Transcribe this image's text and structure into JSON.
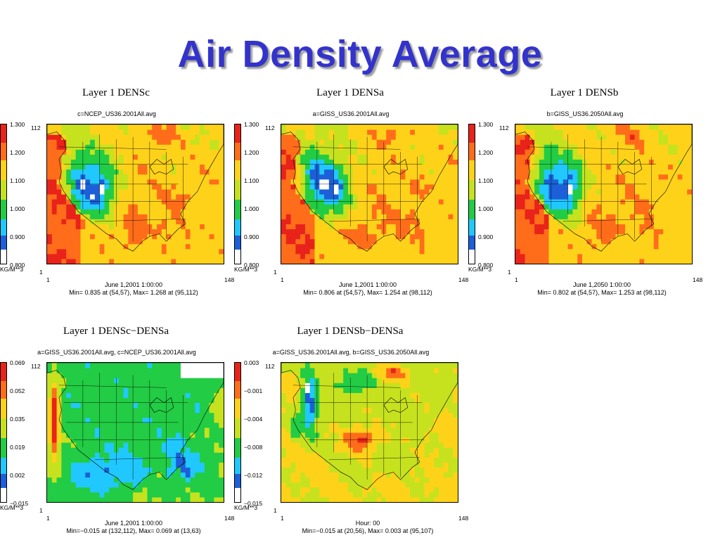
{
  "slide": {
    "title": "Air Density Average"
  },
  "panels": [
    {
      "title": "Layer 1  DENSc",
      "file": "c=NCEP_US36.2001All.avg",
      "colorbar": {
        "labels": [
          "1.300",
          "1.200",
          "1.100",
          "1.000",
          "0.900",
          "0.800"
        ],
        "unit": "KG/M**3"
      },
      "axes": {
        "y_top": "112",
        "y_bottom": "1",
        "x_left": "1",
        "x_right": "148"
      },
      "caption": {
        "date": "June 1,2001 1:00:00",
        "minmax": "Min= 0.835 at (54,57), Max= 1.268 at (95,112)"
      },
      "field": {
        "kind": "abs",
        "min": 0.835,
        "max": 1.268,
        "min_cell": [
          54,
          57
        ],
        "max_cell": [
          95,
          112
        ]
      }
    },
    {
      "title": "Layer 1  DENSa",
      "file": "a=GISS_US36.2001All.avg",
      "colorbar": {
        "labels": [
          "1.300",
          "1.200",
          "1.100",
          "1.000",
          "0.900",
          "0.800"
        ],
        "unit": "KG/M**3"
      },
      "axes": {
        "y_top": "112",
        "y_bottom": "1",
        "x_left": "1",
        "x_right": "148"
      },
      "caption": {
        "date": "June 1,2001 1:00:00",
        "minmax": "Min= 0.806 at (54,57), Max= 1.254 at (98,112)"
      },
      "field": {
        "kind": "abs",
        "min": 0.806,
        "max": 1.254,
        "min_cell": [
          54,
          57
        ],
        "max_cell": [
          98,
          112
        ]
      }
    },
    {
      "title": "Layer 1  DENSb",
      "file": "b=GISS_US36.2050All.avg",
      "colorbar": {
        "labels": [
          "1.300",
          "1.200",
          "1.100",
          "1.000",
          "0.900",
          "0.800"
        ],
        "unit": "KG/M**3"
      },
      "axes": {
        "y_top": "112",
        "y_bottom": "1",
        "x_left": "1",
        "x_right": "148"
      },
      "caption": {
        "date": "June 1,2050 1:00:00",
        "minmax": "Min= 0.802 at (54,57), Max= 1.253 at (98,112)"
      },
      "field": {
        "kind": "abs",
        "min": 0.802,
        "max": 1.253,
        "min_cell": [
          54,
          57
        ],
        "max_cell": [
          98,
          112
        ]
      }
    },
    {
      "title": "Layer 1  DENSc−DENSa",
      "file": "a=GISS_US36.2001All.avg, c=NCEP_US36.2001All.avg",
      "colorbar": {
        "labels": [
          "0.069",
          "0.052",
          "0.035",
          "0.019",
          "0.002",
          "−0.015"
        ],
        "unit": "KG/M**3"
      },
      "axes": {
        "y_top": "112",
        "y_bottom": "1",
        "x_left": "1",
        "x_right": "148"
      },
      "caption": {
        "date": "June 1,2001 1:00:00",
        "minmax": "Min=−0.015 at (132,112), Max= 0.069 at (13,63)"
      },
      "field": {
        "kind": "diff-ca",
        "min": -0.015,
        "max": 0.069,
        "min_cell": [
          132,
          112
        ],
        "max_cell": [
          13,
          63
        ]
      }
    },
    {
      "title": "Layer 1  DENSb−DENSa",
      "file": "a=GISS_US36.2001All.avg, b=GISS_US36.2050All.avg",
      "colorbar": {
        "labels": [
          "0.003",
          "−0.001",
          "−0.004",
          "−0.008",
          "−0.012",
          "−0.015"
        ],
        "unit": "KG/M**3"
      },
      "axes": {
        "y_top": "112",
        "y_bottom": "1",
        "x_left": "1",
        "x_right": "148"
      },
      "caption": {
        "date": "Hour: 00",
        "minmax": "Min=−0.015 at (20,56), Max= 0.003 at (95,107)"
      },
      "field": {
        "kind": "diff-ba",
        "min": -0.015,
        "max": 0.003,
        "min_cell": [
          20,
          56
        ],
        "max_cell": [
          95,
          107
        ]
      }
    }
  ],
  "palette": [
    "#ffffff",
    "#1c5fd8",
    "#21c8ff",
    "#22cc44",
    "#c6e21e",
    "#ffd21a",
    "#ff6d1a",
    "#e8231a"
  ]
}
